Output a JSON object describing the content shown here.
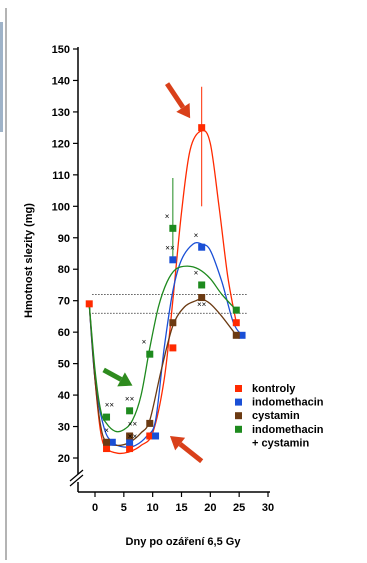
{
  "chart_data": {
    "type": "line",
    "title": "",
    "xlabel": "Dny po ozáření 6,5 Gy",
    "ylabel": "Hmotnost slezity (mg)",
    "xlim": [
      0,
      30
    ],
    "ylim": [
      20,
      150
    ],
    "axis_break_y": true,
    "x_ticks": [
      "0",
      "5",
      "10",
      "15",
      "20",
      "25",
      "30"
    ],
    "y_ticks": [
      "20",
      "30",
      "40",
      "50",
      "60",
      "70",
      "80",
      "90",
      "100",
      "110",
      "120",
      "130",
      "140",
      "150"
    ],
    "grid": false,
    "legend_position": "right-bottom",
    "reference_band": [
      66,
      72
    ],
    "series": [
      {
        "name": "kontroly",
        "color": "#ff2a00",
        "points": [
          {
            "x": -1,
            "y": 69
          },
          {
            "x": 2,
            "y": 23
          },
          {
            "x": 6,
            "y": 23
          },
          {
            "x": 9.5,
            "y": 27
          },
          {
            "x": 13.5,
            "y": 55
          },
          {
            "x": 18.5,
            "y": 125,
            "err": [
              100,
              138
            ]
          },
          {
            "x": 24.5,
            "y": 63
          }
        ],
        "curve": [
          [
            -1,
            69
          ],
          [
            0,
            45
          ],
          [
            1,
            28
          ],
          [
            2,
            23
          ],
          [
            4,
            21.5
          ],
          [
            6,
            22
          ],
          [
            8,
            24
          ],
          [
            10,
            28
          ],
          [
            12,
            45
          ],
          [
            13.5,
            70
          ],
          [
            15,
            98
          ],
          [
            16.5,
            118
          ],
          [
            18.5,
            124
          ],
          [
            20,
            120
          ],
          [
            21.5,
            100
          ],
          [
            23,
            78
          ],
          [
            24.5,
            63
          ]
        ]
      },
      {
        "name": "indomethacin",
        "color": "#1a4fd6",
        "points": [
          {
            "x": 3,
            "y": 25
          },
          {
            "x": 6,
            "y": 25
          },
          {
            "x": 10.5,
            "y": 27
          },
          {
            "x": 13.5,
            "y": 83
          },
          {
            "x": 18.5,
            "y": 87
          },
          {
            "x": 25.5,
            "y": 59
          }
        ],
        "curve": [
          [
            -1,
            69
          ],
          [
            0,
            45
          ],
          [
            1.5,
            30
          ],
          [
            3,
            25
          ],
          [
            5,
            23.5
          ],
          [
            7,
            24
          ],
          [
            9,
            27
          ],
          [
            10.5,
            32
          ],
          [
            12,
            55
          ],
          [
            13.5,
            73
          ],
          [
            15,
            83
          ],
          [
            17,
            88
          ],
          [
            18.5,
            88
          ],
          [
            20,
            86
          ],
          [
            22,
            76
          ],
          [
            24,
            63
          ],
          [
            25.5,
            59
          ]
        ]
      },
      {
        "name": "cystamin",
        "color": "#6b3a12",
        "points": [
          {
            "x": 2,
            "y": 25
          },
          {
            "x": 6,
            "y": 27
          },
          {
            "x": 9.5,
            "y": 31
          },
          {
            "x": 13.5,
            "y": 63
          },
          {
            "x": 18.5,
            "y": 71
          },
          {
            "x": 24.5,
            "y": 59
          }
        ],
        "curve": [
          [
            -1,
            69
          ],
          [
            0,
            45
          ],
          [
            1,
            30
          ],
          [
            2,
            25
          ],
          [
            4,
            24
          ],
          [
            6,
            25
          ],
          [
            8,
            28
          ],
          [
            9.5,
            32
          ],
          [
            11.5,
            48
          ],
          [
            13.5,
            62
          ],
          [
            15.5,
            68
          ],
          [
            17.5,
            70
          ],
          [
            18.5,
            70.5
          ],
          [
            20,
            69
          ],
          [
            22,
            65
          ],
          [
            24.5,
            59
          ]
        ]
      },
      {
        "name": "indomethacin + cystamin",
        "color": "#1e8a1e",
        "points": [
          {
            "x": 2,
            "y": 33
          },
          {
            "x": 6,
            "y": 35
          },
          {
            "x": 9.5,
            "y": 53
          },
          {
            "x": 13.5,
            "y": 93,
            "err": [
              83,
              109
            ]
          },
          {
            "x": 18.5,
            "y": 75
          },
          {
            "x": 24.5,
            "y": 67
          }
        ],
        "curve": [
          [
            -1,
            69
          ],
          [
            0,
            48
          ],
          [
            1,
            35
          ],
          [
            2,
            31
          ],
          [
            3.5,
            28.5
          ],
          [
            5,
            29
          ],
          [
            6.5,
            32
          ],
          [
            8,
            40
          ],
          [
            9.5,
            55
          ],
          [
            11,
            68
          ],
          [
            12.5,
            76
          ],
          [
            14,
            80
          ],
          [
            16,
            81
          ],
          [
            18,
            80
          ],
          [
            20,
            77
          ],
          [
            22,
            72
          ],
          [
            24.5,
            67
          ]
        ]
      }
    ],
    "cross_markers": [
      {
        "x": 2,
        "y": 28,
        "label": "×"
      },
      {
        "x": 2.5,
        "y": 36,
        "label": "××"
      },
      {
        "x": 6,
        "y": 38,
        "label": "××"
      },
      {
        "x": 6.5,
        "y": 30,
        "label": "××"
      },
      {
        "x": 6.5,
        "y": 26,
        "label": "××"
      },
      {
        "x": 8.5,
        "y": 56,
        "label": "×"
      },
      {
        "x": 12.5,
        "y": 96,
        "label": "×"
      },
      {
        "x": 13,
        "y": 86,
        "label": "××"
      },
      {
        "x": 17.5,
        "y": 90,
        "label": "×"
      },
      {
        "x": 17.5,
        "y": 78,
        "label": "×"
      },
      {
        "x": 18.5,
        "y": 68,
        "label": "××"
      }
    ],
    "arrows": [
      {
        "color": "#d9401a",
        "from": [
          12.5,
          139
        ],
        "to": [
          16.5,
          128
        ]
      },
      {
        "color": "#2e8b1e",
        "from": [
          1.5,
          48
        ],
        "to": [
          6.5,
          43
        ]
      },
      {
        "color": "#d9401a",
        "from": [
          18.5,
          19
        ],
        "to": [
          13,
          27
        ]
      }
    ],
    "legend": [
      {
        "label": "kontroly",
        "color": "#ff2a00"
      },
      {
        "label": "indomethacin",
        "color": "#1a4fd6"
      },
      {
        "label": "cystamin",
        "color": "#6b3a12"
      },
      {
        "label": "indomethacin",
        "color": "#1e8a1e"
      },
      {
        "label": "+ cystamin",
        "color": ""
      }
    ]
  }
}
